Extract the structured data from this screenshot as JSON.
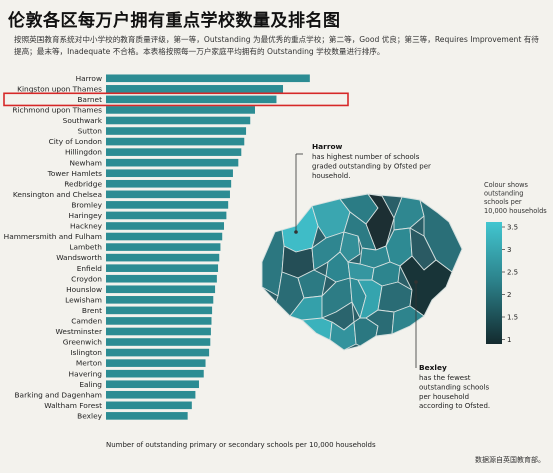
{
  "header": {
    "title": "伦敦各区每万户拥有重点学校数量及排名图",
    "subtitle": "按照英国教育系统对中小学校的教育质量评级，第一等，Outstanding 为最优秀的重点学校；第二等，Good 优良；第三等，Requires Improvement 有待提高；最末等，Inadequate 不合格。本表格按照每一万户家庭平均拥有的 Outstanding 学校数量进行排序。"
  },
  "source_note": "数据源自英国教育部。",
  "highlight_color": "#d62828",
  "colors": {
    "bar": "#2c8c93",
    "accent": "#39c2cc",
    "dark": "#173236"
  },
  "chart_data": {
    "type": "bar",
    "orientation": "horizontal",
    "xlabel": "Number of outstanding primary or secondary schools per 10,000 households",
    "highlighted_category": "Barnet",
    "categories": [
      "Harrow",
      "Kingston upon Thames",
      "Barnet",
      "Richmond upon Thames",
      "Southwark",
      "Sutton",
      "City of London",
      "Hillingdon",
      "Newham",
      "Tower Hamlets",
      "Redbridge",
      "Kensington and Chelsea",
      "Bromley",
      "Haringey",
      "Hackney",
      "Hammersmith and Fulham",
      "Lambeth",
      "Wandsworth",
      "Enfield",
      "Croydon",
      "Hounslow",
      "Lewisham",
      "Brent",
      "Camden",
      "Westminster",
      "Greenwich",
      "Islington",
      "Merton",
      "Havering",
      "Ealing",
      "Barking and Dagenham",
      "Waltham Forest",
      "Bexley"
    ],
    "values": [
      3.42,
      2.97,
      2.86,
      2.5,
      2.42,
      2.35,
      2.32,
      2.27,
      2.22,
      2.13,
      2.1,
      2.08,
      2.05,
      2.02,
      1.98,
      1.95,
      1.92,
      1.9,
      1.88,
      1.86,
      1.83,
      1.8,
      1.78,
      1.77,
      1.76,
      1.75,
      1.73,
      1.67,
      1.64,
      1.56,
      1.5,
      1.44,
      1.37
    ]
  },
  "map": {
    "annotation_top": {
      "title": "Harrow",
      "text": "has highest number of schools graded outstanding by Ofsted per household."
    },
    "annotation_bottom": {
      "title": "Bexley",
      "text": "has the fewest outstanding schools per household according to Ofsted."
    },
    "legend": {
      "title": "Colour shows outstanding schools per 10,000 households",
      "ticks": [
        "3.5",
        "3",
        "2.5",
        "2",
        "1.5",
        "1"
      ]
    }
  }
}
